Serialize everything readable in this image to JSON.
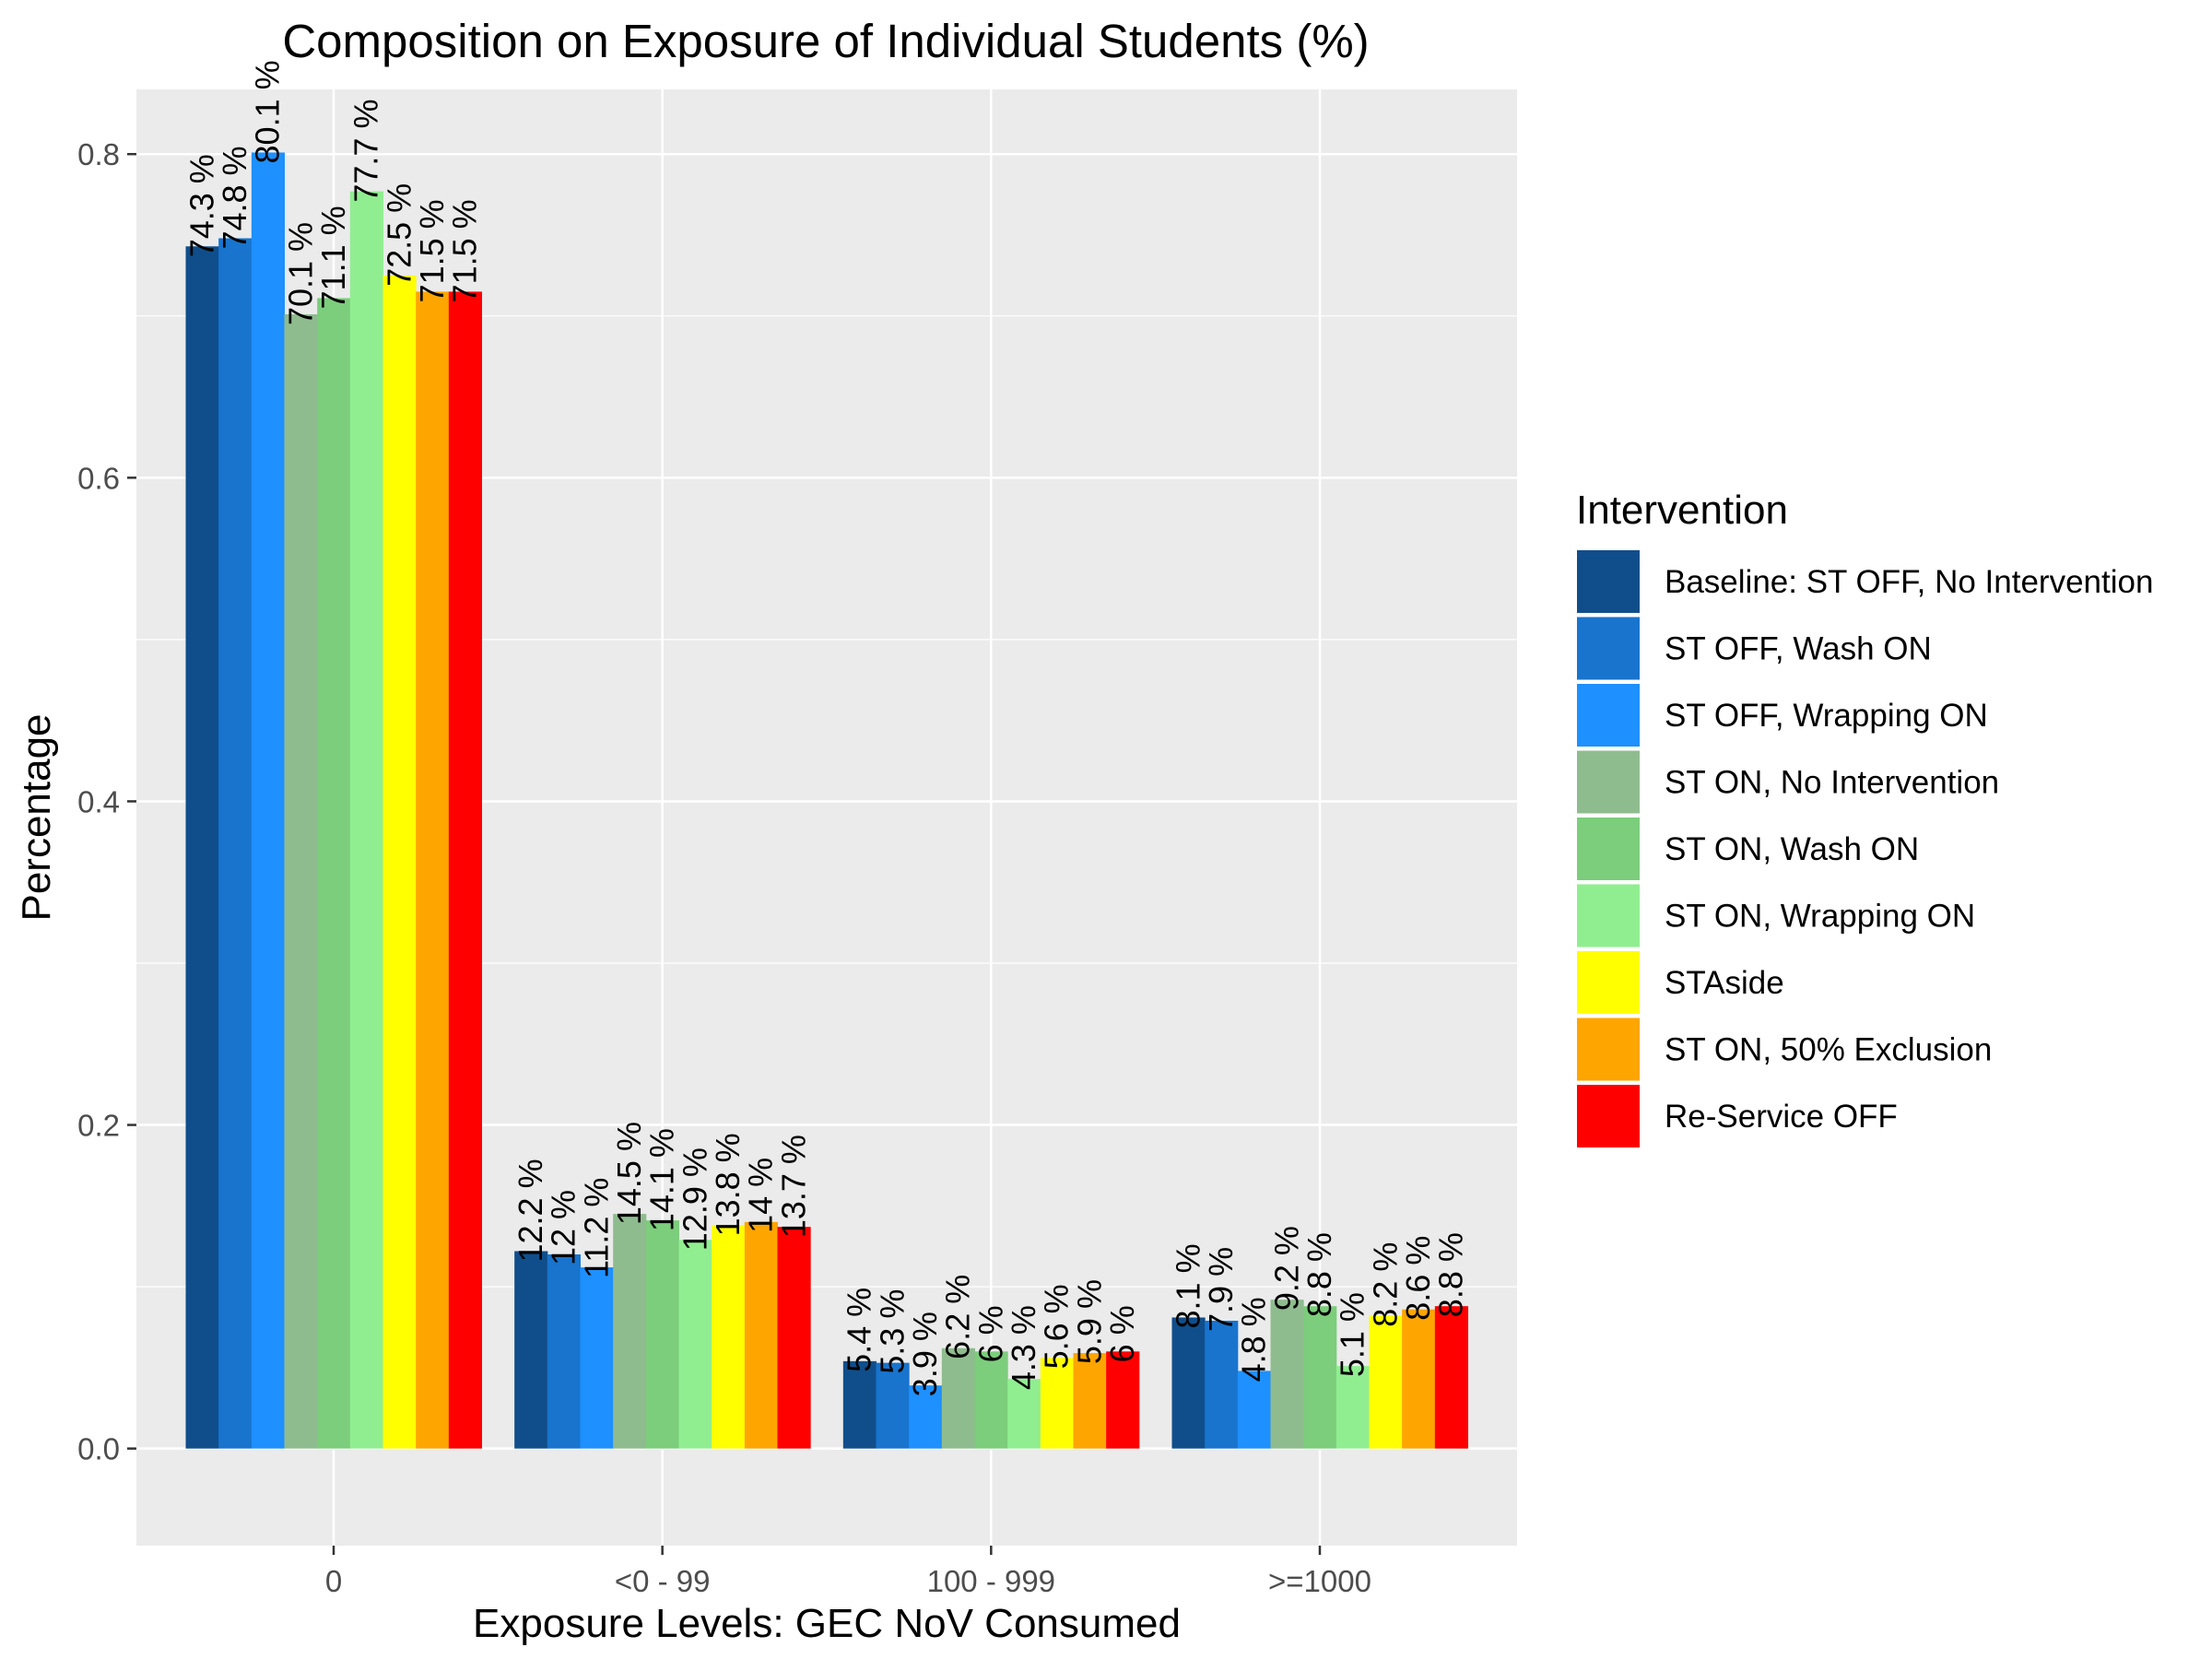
{
  "chart_data": {
    "type": "bar",
    "title": "Composition on Exposure of Individual Students (%)",
    "xlabel": "Exposure Levels: GEC NoV Consumed",
    "ylabel": "Percentage",
    "ylim": [
      -0.06,
      0.84
    ],
    "yticks": [
      0.0,
      0.2,
      0.4,
      0.6,
      0.8
    ],
    "ytick_labels": [
      "0.0",
      "0.2",
      "0.4",
      "0.6",
      "0.8"
    ],
    "categories": [
      "0",
      "<0 - 99",
      "100 - 999",
      ">=1000"
    ],
    "grid": true,
    "legend": {
      "title": "Intervention",
      "position": "right"
    },
    "label_suffix": " %",
    "series": [
      {
        "name": "Baseline: ST OFF, No Intervention",
        "color": "#104E8B",
        "values": [
          0.743,
          0.122,
          0.054,
          0.081
        ]
      },
      {
        "name": "ST OFF, Wash ON",
        "color": "#1874CD",
        "values": [
          0.748,
          0.12,
          0.053,
          0.079
        ]
      },
      {
        "name": "ST OFF, Wrapping ON",
        "color": "#1E90FF",
        "values": [
          0.801,
          0.112,
          0.039,
          0.048
        ]
      },
      {
        "name": "ST ON, No Intervention",
        "color": "#8FBC8F",
        "values": [
          0.701,
          0.145,
          0.062,
          0.092
        ]
      },
      {
        "name": "ST ON, Wash ON",
        "color": "#7CCD7C",
        "values": [
          0.711,
          0.141,
          0.06,
          0.088
        ]
      },
      {
        "name": "ST ON, Wrapping ON",
        "color": "#90EE90",
        "values": [
          0.777,
          0.129,
          0.043,
          0.051
        ]
      },
      {
        "name": "STAside",
        "color": "#FFFF00",
        "values": [
          0.725,
          0.138,
          0.056,
          0.082
        ]
      },
      {
        "name": "ST ON, 50% Exclusion",
        "color": "#FFA500",
        "values": [
          0.715,
          0.14,
          0.059,
          0.086
        ]
      },
      {
        "name": "Re-Service OFF",
        "color": "#FF0000",
        "values": [
          0.715,
          0.137,
          0.06,
          0.088
        ]
      }
    ],
    "data_labels": [
      [
        "74.3",
        "74.8",
        "80.1",
        "70.1",
        "71.1",
        "77.7",
        "72.5",
        "71.5",
        "71.5"
      ],
      [
        "12.2",
        "12",
        "11.2",
        "14.5",
        "14.1",
        "12.9",
        "13.8",
        "14",
        "13.7"
      ],
      [
        "5.4",
        "5.3",
        "3.9",
        "6.2",
        "6",
        "4.3",
        "5.6",
        "5.9",
        "6"
      ],
      [
        "8.1",
        "7.9",
        "4.8",
        "9.2",
        "8.8",
        "5.1",
        "8.2",
        "8.6",
        "8.8"
      ]
    ]
  }
}
